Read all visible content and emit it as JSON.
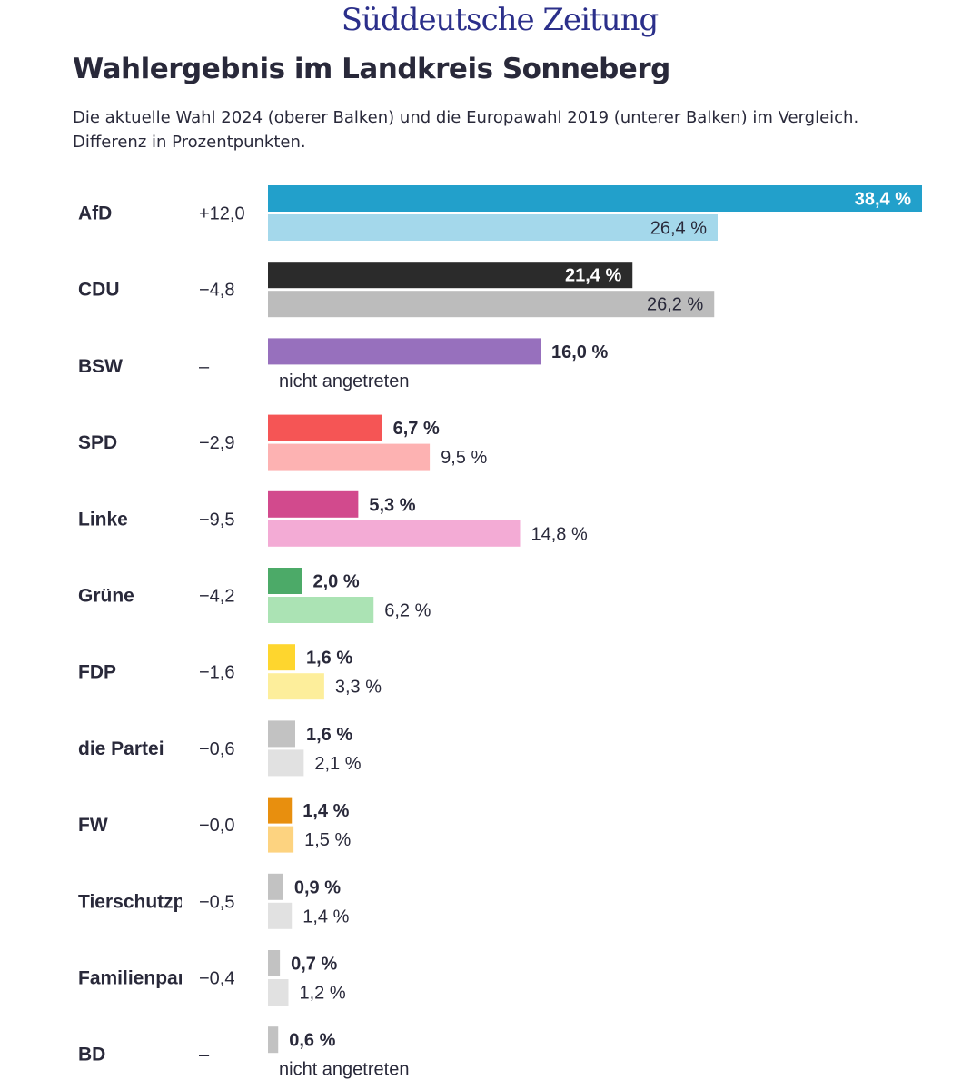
{
  "brand": {
    "logo_text": "Süddeutsche Zeitung"
  },
  "header": {
    "title": "Wahlergebnis im Landkreis Sonneberg",
    "subtitle_line1": "Die aktuelle Wahl 2024 (oberer Balken) und die Europawahl 2019 (unterer Balken) im Vergleich.",
    "subtitle_line2": "Differenz in Prozentpunkten."
  },
  "chart_data": {
    "type": "bar",
    "orientation": "horizontal",
    "title": "Wahlergebnis im Landkreis Sonneberg",
    "unit": "%",
    "xlim": [
      0,
      38.4
    ],
    "not_participated_label": "nicht angetreten",
    "series": [
      {
        "name": "Wahl 2024",
        "position": "upper"
      },
      {
        "name": "Europawahl 2019",
        "position": "lower"
      }
    ],
    "parties": [
      {
        "name": "AfD",
        "diff": "+12,0",
        "current": 38.4,
        "current_label": "38,4 %",
        "previous": 26.4,
        "previous_label": "26,4 %",
        "color_current": "#22a0cb",
        "color_previous": "#a4d8eb"
      },
      {
        "name": "CDU",
        "diff": "−4,8",
        "current": 21.4,
        "current_label": "21,4 %",
        "previous": 26.2,
        "previous_label": "26,2 %",
        "color_current": "#2b2b2b",
        "color_previous": "#bcbcbc"
      },
      {
        "name": "BSW",
        "diff": "–",
        "current": 16.0,
        "current_label": "16,0 %",
        "previous": null,
        "previous_label": null,
        "color_current": "#9770bd",
        "color_previous": null
      },
      {
        "name": "SPD",
        "diff": "−2,9",
        "current": 6.7,
        "current_label": "6,7 %",
        "previous": 9.5,
        "previous_label": "9,5 %",
        "color_current": "#f55555",
        "color_previous": "#fdb2b2"
      },
      {
        "name": "Linke",
        "diff": "−9,5",
        "current": 5.3,
        "current_label": "5,3 %",
        "previous": 14.8,
        "previous_label": "14,8 %",
        "color_current": "#d24a8d",
        "color_previous": "#f3abd5"
      },
      {
        "name": "Grüne",
        "diff": "−4,2",
        "current": 2.0,
        "current_label": "2,0 %",
        "previous": 6.2,
        "previous_label": "6,2 %",
        "color_current": "#4caa68",
        "color_previous": "#abe3b4"
      },
      {
        "name": "FDP",
        "diff": "−1,6",
        "current": 1.6,
        "current_label": "1,6 %",
        "previous": 3.3,
        "previous_label": "3,3 %",
        "color_current": "#fed62e",
        "color_previous": "#fdee9b"
      },
      {
        "name": "die Partei",
        "diff": "−0,6",
        "current": 1.6,
        "current_label": "1,6 %",
        "previous": 2.1,
        "previous_label": "2,1 %",
        "color_current": "#c2c2c2",
        "color_previous": "#e1e1e1"
      },
      {
        "name": "FW",
        "diff": "−0,0",
        "current": 1.4,
        "current_label": "1,4 %",
        "previous": 1.5,
        "previous_label": "1,5 %",
        "color_current": "#e88f0e",
        "color_previous": "#fdd380"
      },
      {
        "name": "Tierschutzpa",
        "diff": "−0,5",
        "current": 0.9,
        "current_label": "0,9 %",
        "previous": 1.4,
        "previous_label": "1,4 %",
        "color_current": "#c2c2c2",
        "color_previous": "#e1e1e1"
      },
      {
        "name": "Familienpart",
        "diff": "−0,4",
        "current": 0.7,
        "current_label": "0,7 %",
        "previous": 1.2,
        "previous_label": "1,2 %",
        "color_current": "#c2c2c2",
        "color_previous": "#e1e1e1"
      },
      {
        "name": "BD",
        "diff": "–",
        "current": 0.6,
        "current_label": "0,6 %",
        "previous": null,
        "previous_label": null,
        "color_current": "#c2c2c2",
        "color_previous": null
      }
    ]
  }
}
